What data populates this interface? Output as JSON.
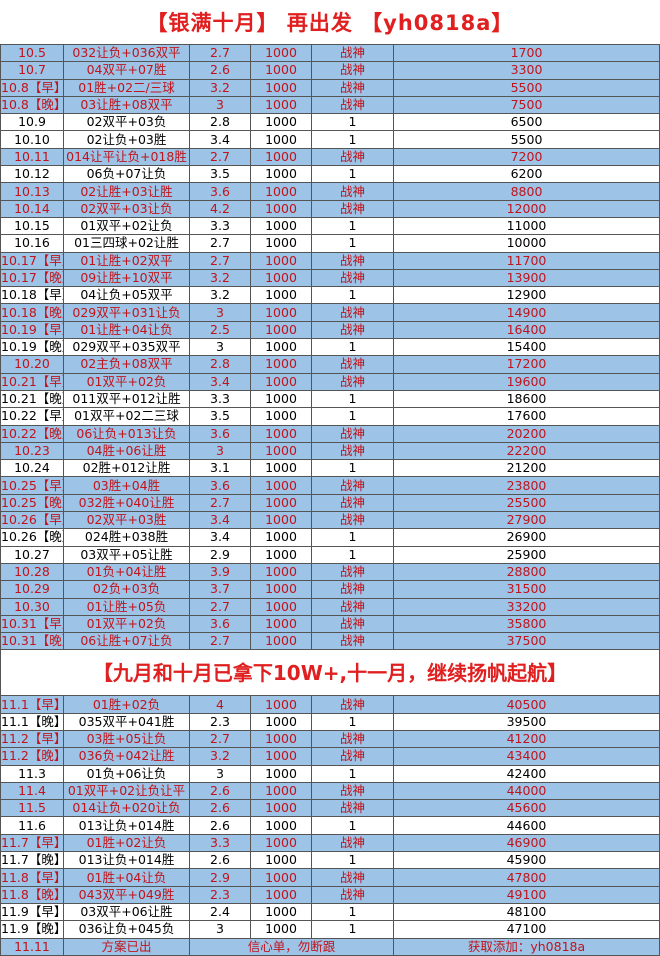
{
  "title": "【银满十月】 再出发 【yh0818a】",
  "subtitle": "【九月和十月已拿下10W+,十一月，继续扬帆起航】",
  "colors": {
    "win_row_bg": "#9dc3e6",
    "win_text": "#c0141c",
    "title_red": "#e02020"
  },
  "october_rows": [
    [
      "10.5",
      "032让负+036双平",
      "2.7",
      "1000",
      "战神",
      "1700"
    ],
    [
      "10.7",
      "04双平+07胜",
      "2.6",
      "1000",
      "战神",
      "3300"
    ],
    [
      "10.8【早】",
      "01胜+02二/三球",
      "3.2",
      "1000",
      "战神",
      "5500"
    ],
    [
      "10.8【晚】",
      "03让胜+08双平",
      "3",
      "1000",
      "战神",
      "7500"
    ],
    [
      "10.9",
      "02双平+03负",
      "2.8",
      "1000",
      "1",
      "6500"
    ],
    [
      "10.10",
      "02让负+03胜",
      "3.4",
      "1000",
      "1",
      "5500"
    ],
    [
      "10.11",
      "014让平让负+018胜",
      "2.7",
      "1000",
      "战神",
      "7200"
    ],
    [
      "10.12",
      "06负+07让负",
      "3.5",
      "1000",
      "1",
      "6200"
    ],
    [
      "10.13",
      "02让胜+03让胜",
      "3.6",
      "1000",
      "战神",
      "8800"
    ],
    [
      "10.14",
      "02双平+03让负",
      "4.2",
      "1000",
      "战神",
      "12000"
    ],
    [
      "10.15",
      "01双平+02让负",
      "3.3",
      "1000",
      "1",
      "11000"
    ],
    [
      "10.16",
      "01三四球+02让胜",
      "2.7",
      "1000",
      "1",
      "10000"
    ],
    [
      "10.17【早】",
      "01让胜+02双平",
      "2.7",
      "1000",
      "战神",
      "11700"
    ],
    [
      "10.17【晚】",
      "09让胜+10双平",
      "3.2",
      "1000",
      "战神",
      "13900"
    ],
    [
      "10.18【早】",
      "04让负+05双平",
      "3.2",
      "1000",
      "1",
      "12900"
    ],
    [
      "10.18【晚】",
      "029双平+031让负",
      "3",
      "1000",
      "战神",
      "14900"
    ],
    [
      "10.19【早】",
      "01让胜+04让负",
      "2.5",
      "1000",
      "战神",
      "16400"
    ],
    [
      "10.19【晚】",
      "029双平+035双平",
      "3",
      "1000",
      "1",
      "15400"
    ],
    [
      "10.20",
      "02主负+08双平",
      "2.8",
      "1000",
      "战神",
      "17200"
    ],
    [
      "10.21【早】",
      "01双平+02负",
      "3.4",
      "1000",
      "战神",
      "19600"
    ],
    [
      "10.21【晚】",
      "011双平+012让胜",
      "3.3",
      "1000",
      "1",
      "18600"
    ],
    [
      "10.22【早】",
      "01双平+02二三球",
      "3.5",
      "1000",
      "1",
      "17600"
    ],
    [
      "10.22【晚】",
      "06让负+013让负",
      "3.6",
      "1000",
      "战神",
      "20200"
    ],
    [
      "10.23",
      "04胜+06让胜",
      "3",
      "1000",
      "战神",
      "22200"
    ],
    [
      "10.24",
      "02胜+012让胜",
      "3.1",
      "1000",
      "1",
      "21200"
    ],
    [
      "10.25【早】",
      "03胜+04胜",
      "3.6",
      "1000",
      "战神",
      "23800"
    ],
    [
      "10.25【晚】",
      "032胜+040让胜",
      "2.7",
      "1000",
      "战神",
      "25500"
    ],
    [
      "10.26【早】",
      "02双平+03胜",
      "3.4",
      "1000",
      "战神",
      "27900"
    ],
    [
      "10.26【晚】",
      "024胜+038胜",
      "3.4",
      "1000",
      "1",
      "26900"
    ],
    [
      "10.27",
      "03双平+05让胜",
      "2.9",
      "1000",
      "1",
      "25900"
    ],
    [
      "10.28",
      "01负+04让胜",
      "3.9",
      "1000",
      "战神",
      "28800"
    ],
    [
      "10.29",
      "02负+03负",
      "3.7",
      "1000",
      "战神",
      "31500"
    ],
    [
      "10.30",
      "01让胜+05负",
      "2.7",
      "1000",
      "战神",
      "33200"
    ],
    [
      "10.31【早】",
      "01双平+02负",
      "3.6",
      "1000",
      "战神",
      "35800"
    ],
    [
      "10.31【晚】",
      "06让胜+07让负",
      "2.7",
      "1000",
      "战神",
      "37500"
    ]
  ],
  "november_rows": [
    [
      "11.1【早】",
      "01胜+02负",
      "4",
      "1000",
      "战神",
      "40500"
    ],
    [
      "11.1【晚】",
      "035双平+041胜",
      "2.3",
      "1000",
      "1",
      "39500"
    ],
    [
      "11.2【早】",
      "03胜+05让负",
      "2.7",
      "1000",
      "战神",
      "41200"
    ],
    [
      "11.2【晚】",
      "036负+042让胜",
      "3.2",
      "1000",
      "战神",
      "43400"
    ],
    [
      "11.3",
      "01负+06让负",
      "3",
      "1000",
      "1",
      "42400"
    ],
    [
      "11.4",
      "01双平+02让负让平",
      "2.6",
      "1000",
      "战神",
      "44000"
    ],
    [
      "11.5",
      "014让负+020让负",
      "2.6",
      "1000",
      "战神",
      "45600"
    ],
    [
      "11.6",
      "013让负+014胜",
      "2.6",
      "1000",
      "1",
      "44600"
    ],
    [
      "11.7【早】",
      "01胜+02让负",
      "3.3",
      "1000",
      "战神",
      "46900"
    ],
    [
      "11.7【晚】",
      "013让负+014胜",
      "2.6",
      "1000",
      "1",
      "45900"
    ],
    [
      "11.8【早】",
      "01胜+04让负",
      "2.9",
      "1000",
      "战神",
      "47800"
    ],
    [
      "11.8【晚】",
      "043双平+049胜",
      "2.3",
      "1000",
      "战神",
      "49100"
    ],
    [
      "11.9【早】",
      "03双平+06让胜",
      "2.4",
      "1000",
      "1",
      "48100"
    ],
    [
      "11.9【晚】",
      "036让负+045负",
      "3",
      "1000",
      "1",
      "47100"
    ]
  ],
  "footer": {
    "date": "11.11",
    "status": "方案已出",
    "note": "信心单，勿断跟",
    "contact": "获取添加：yh0818a"
  }
}
